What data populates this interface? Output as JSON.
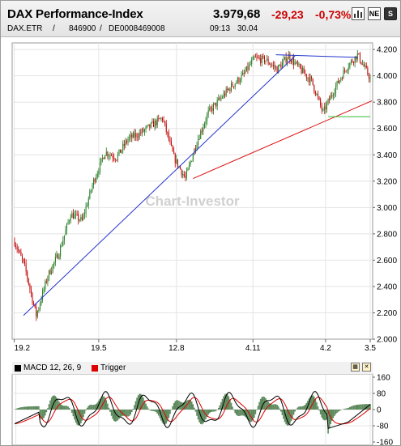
{
  "header": {
    "title": "DAX Performance-Index",
    "price": "3.979,68",
    "change": "-29,23",
    "change_pct": "-0,73%",
    "symbol": "DAX.ETR",
    "sep1": "/",
    "wkn": "846900",
    "sep2": "/",
    "isin": "DE0008469008",
    "time": "09:13",
    "date": "30.04",
    "icons": [
      "bar-chart-icon",
      "news-icon",
      "settings-icon"
    ],
    "icon_glyphs": {
      "news": "NE",
      "settings": "S"
    }
  },
  "watermark": "Chart-Investor",
  "colors": {
    "up_candle": "#1f7a1f",
    "down_candle": "#c00000",
    "trend_blue": "#2233cc",
    "trend_red": "#dd1111",
    "support_green": "#33bb33",
    "macd_line": "#000000",
    "trigger_line": "#dd0000",
    "histogram": "#5d8a5d",
    "change_red": "#cc0000"
  },
  "chart_data": [
    {
      "type": "candlestick",
      "title": "DAX Performance-Index",
      "x_tick_labels": [
        "19.2",
        "19.5",
        "12.8",
        "4.11",
        "4.2",
        "3.5"
      ],
      "y_tick_labels": [
        "2.000",
        "2.200",
        "2.400",
        "2.600",
        "2.800",
        "3.000",
        "3.200",
        "3.400",
        "3.600",
        "3.800",
        "4.000",
        "4.200"
      ],
      "ylim": [
        2000,
        4250
      ],
      "grid": true,
      "series": [
        {
          "name": "close",
          "x_index": [
            0,
            8,
            17,
            26,
            35,
            44,
            53,
            62,
            71,
            80,
            89,
            98,
            107,
            116,
            125,
            134,
            143,
            152,
            161,
            170,
            179,
            188,
            197,
            206,
            215,
            224,
            233,
            242,
            251,
            260,
            269,
            279
          ],
          "values": [
            2740,
            2550,
            2180,
            2480,
            2660,
            2950,
            2900,
            3200,
            3420,
            3380,
            3520,
            3560,
            3620,
            3680,
            3380,
            3220,
            3500,
            3720,
            3820,
            3920,
            4000,
            4130,
            4120,
            4050,
            4150,
            4050,
            3960,
            3720,
            3900,
            4060,
            4160,
            3980
          ]
        }
      ],
      "annotations": [
        {
          "type": "trendline",
          "color": "blue",
          "from": [
            7,
            2180
          ],
          "to": [
            220,
            4150
          ]
        },
        {
          "type": "trendline",
          "color": "blue",
          "from": [
            205,
            4160
          ],
          "to": [
            269,
            4140
          ]
        },
        {
          "type": "trendline",
          "color": "red",
          "from": [
            140,
            3220
          ],
          "to": [
            282,
            3810
          ]
        },
        {
          "type": "support",
          "color": "green",
          "from": [
            246,
            3690
          ],
          "to": [
            279,
            3690
          ]
        }
      ]
    },
    {
      "type": "line",
      "title": "MACD 12, 26, 9",
      "y_tick_labels": [
        "160",
        "80",
        "0",
        "-80",
        "-160"
      ],
      "ylim": [
        -160,
        160
      ],
      "series": [
        {
          "name": "MACD 12, 26, 9",
          "color": "#000000"
        },
        {
          "name": "Trigger",
          "color": "#dd0000"
        }
      ]
    }
  ]
}
